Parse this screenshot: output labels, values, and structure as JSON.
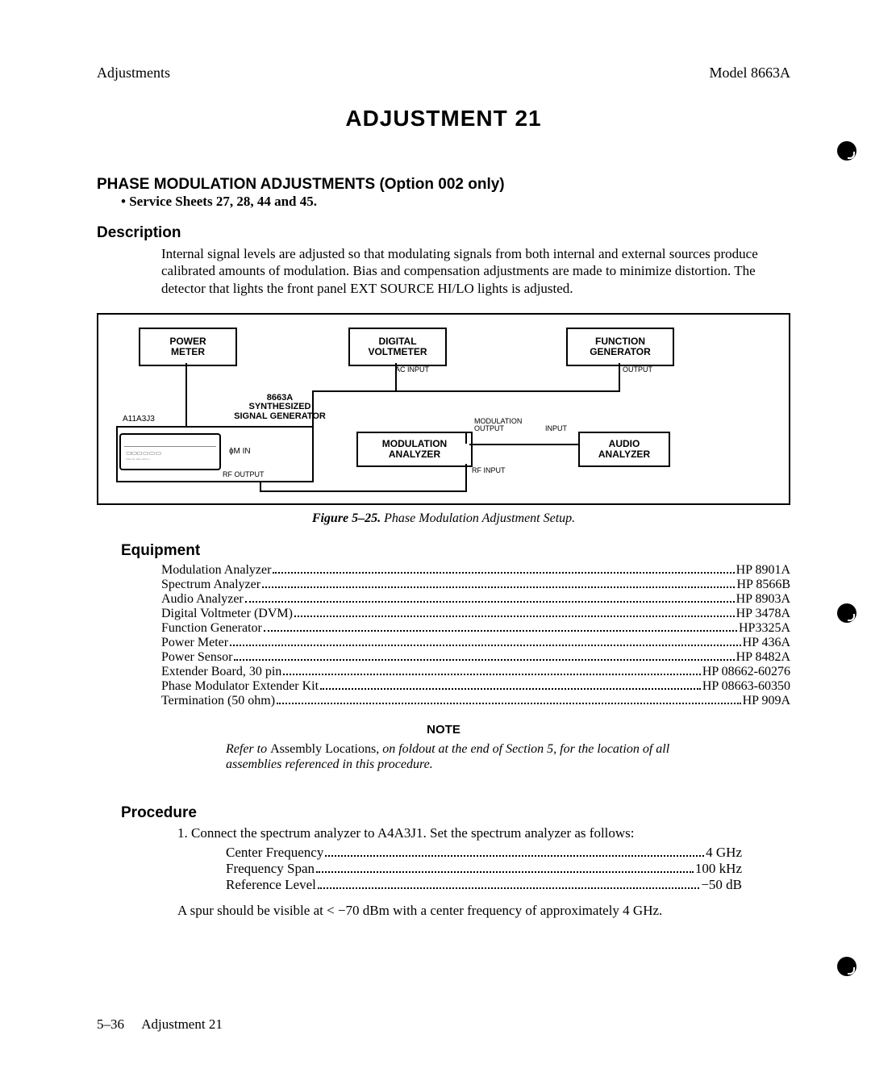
{
  "header": {
    "left": "Adjustments",
    "right": "Model 8663A"
  },
  "title": "ADJUSTMENT 21",
  "subtitle": "PHASE MODULATION ADJUSTMENTS (Option 002 only)",
  "service_line": "• Service Sheets 27, 28, 44 and 45.",
  "sections": {
    "description_h": "Description",
    "description_body": "Internal signal levels are adjusted so that modulating signals from both internal and external sources produce calibrated amounts of modulation. Bias and compensation adjustments are made to minimize distortion. The detector that lights the front panel EXT SOURCE HI/LO lights is adjusted.",
    "equipment_h": "Equipment",
    "procedure_h": "Procedure"
  },
  "diagram": {
    "power_meter": "POWER\nMETER",
    "digital_voltmeter": "DIGITAL\nVOLTMETER",
    "function_generator": "FUNCTION\nGENERATOR",
    "sig_gen_a": "8663A",
    "sig_gen_b": "SYNTHESIZED",
    "sig_gen_c": "SIGNAL GENERATOR",
    "a11a3j3": "A11A3J3",
    "modulation_analyzer": "MODULATION\nANALYZER",
    "audio_analyzer": "AUDIO\nANALYZER",
    "phi_m_in": "ɸM IN",
    "rf_output": "RF OUTPUT",
    "rf_input": "RF INPUT",
    "ac_input": "AC INPUT",
    "output": "OUTPUT",
    "mod_output": "MODULATION\nOUTPUT",
    "input": "INPUT"
  },
  "figure": {
    "bold": "Figure 5–25.",
    "rest": "Phase Modulation Adjustment Setup."
  },
  "equipment": [
    {
      "l": "Modulation Analyzer",
      "r": "HP 8901A"
    },
    {
      "l": "Spectrum Analyzer",
      "r": "HP 8566B"
    },
    {
      "l": "Audio Analyzer",
      "r": "HP 8903A"
    },
    {
      "l": "Digital Voltmeter (DVM)",
      "r": "HP 3478A"
    },
    {
      "l": "Function Generator",
      "r": "HP3325A"
    },
    {
      "l": "Power Meter",
      "r": "HP 436A"
    },
    {
      "l": "Power Sensor",
      "r": "HP 8482A"
    },
    {
      "l": "Extender Board, 30 pin",
      "r": "HP 08662-60276"
    },
    {
      "l": "Phase Modulator Extender Kit",
      "r": "HP 08663-60350"
    },
    {
      "l": "Termination (50 ohm)",
      "r": "HP 909A"
    }
  ],
  "note": {
    "title": "NOTE",
    "pre": "Refer to ",
    "roman": "Assembly Locations,",
    "post": " on foldout at the end of Section 5, for the location of all assemblies referenced in this procedure."
  },
  "procedure": {
    "step1": "1. Connect the spectrum analyzer to A4A3J1. Set the spectrum analyzer as follows:",
    "settings": [
      {
        "l": "Center Frequency",
        "r": "4 GHz"
      },
      {
        "l": "Frequency Span",
        "r": "100 kHz"
      },
      {
        "l": "Reference Level",
        "r": "−50 dB"
      }
    ],
    "tail": "A spur should be visible at < −70 dBm with a center frequency of approximately 4 GHz."
  },
  "footer": {
    "left": "5–36",
    "right": "Adjustment 21"
  }
}
